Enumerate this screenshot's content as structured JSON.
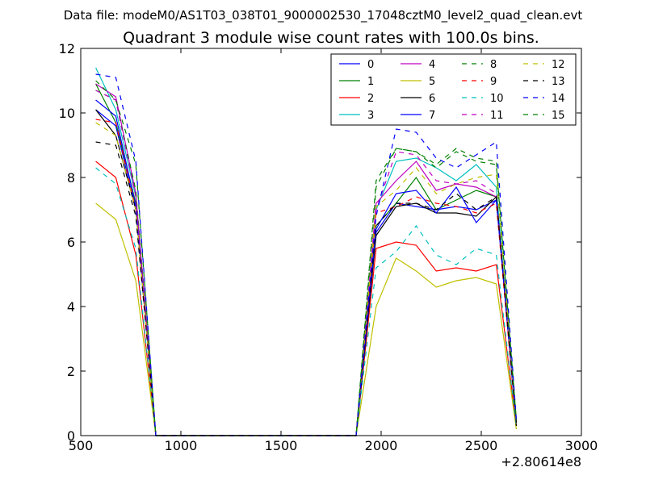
{
  "suptitle": "Data file: modeM0/AS1T03_038T01_9000002530_17048cztM0_level2_quad_clean.evt",
  "chart_data": {
    "type": "line",
    "title": "Quadrant 3 module wise count rates with 100.0s bins.",
    "xlabel": "",
    "ylabel": "",
    "xlim": [
      500,
      3000
    ],
    "ylim": [
      0,
      12
    ],
    "x_ticks": [
      "500",
      "1000",
      "1500",
      "2000",
      "2500",
      "3000"
    ],
    "y_ticks": [
      "0",
      "2",
      "4",
      "6",
      "8",
      "10",
      "12"
    ],
    "x_offset_label": "+2.80614e8",
    "grid": false,
    "legend_position": "top-right",
    "x": [
      575,
      675,
      775,
      875,
      975,
      1075,
      1175,
      1275,
      1375,
      1475,
      1575,
      1675,
      1775,
      1875,
      1975,
      2075,
      2175,
      2275,
      2375,
      2475,
      2575,
      2675
    ],
    "series": [
      {
        "name": "0",
        "color": "#0000ff",
        "dash": "solid",
        "values": [
          10.1,
          9.6,
          7.0,
          0,
          0,
          0,
          0,
          0,
          0,
          0,
          0,
          0,
          0,
          0,
          6.3,
          7.2,
          7.1,
          7.0,
          7.1,
          7.0,
          7.3,
          0.4
        ]
      },
      {
        "name": "1",
        "color": "#008000",
        "dash": "solid",
        "values": [
          10.9,
          9.7,
          7.2,
          0,
          0,
          0,
          0,
          0,
          0,
          0,
          0,
          0,
          0,
          0,
          6.5,
          7.2,
          8.0,
          7.0,
          7.3,
          7.6,
          7.4,
          0.4
        ]
      },
      {
        "name": "2",
        "color": "#ff0000",
        "dash": "solid",
        "values": [
          8.5,
          8.0,
          5.6,
          0,
          0,
          0,
          0,
          0,
          0,
          0,
          0,
          0,
          0,
          0,
          5.8,
          6.0,
          5.9,
          5.1,
          5.2,
          5.1,
          5.3,
          0.3
        ]
      },
      {
        "name": "3",
        "color": "#00bfbf",
        "dash": "solid",
        "values": [
          11.4,
          10.1,
          7.4,
          0,
          0,
          0,
          0,
          0,
          0,
          0,
          0,
          0,
          0,
          0,
          7.0,
          8.5,
          8.6,
          8.3,
          7.9,
          8.4,
          7.7,
          0.4
        ]
      },
      {
        "name": "4",
        "color": "#bf00bf",
        "dash": "solid",
        "values": [
          10.9,
          10.5,
          7.5,
          0,
          0,
          0,
          0,
          0,
          0,
          0,
          0,
          0,
          0,
          0,
          7.2,
          7.9,
          8.5,
          7.6,
          7.8,
          7.7,
          7.4,
          0.5
        ]
      },
      {
        "name": "5",
        "color": "#bfbf00",
        "dash": "solid",
        "values": [
          7.2,
          6.7,
          4.8,
          0,
          0,
          0,
          0,
          0,
          0,
          0,
          0,
          0,
          0,
          0,
          4.0,
          5.5,
          5.1,
          4.6,
          4.8,
          4.9,
          4.7,
          0.2
        ]
      },
      {
        "name": "6",
        "color": "#000000",
        "dash": "solid",
        "values": [
          10.1,
          9.3,
          7.0,
          0,
          0,
          0,
          0,
          0,
          0,
          0,
          0,
          0,
          0,
          0,
          6.2,
          7.1,
          7.2,
          6.9,
          6.9,
          6.8,
          7.4,
          0.3
        ]
      },
      {
        "name": "7",
        "color": "#0000ff",
        "dash": "solid",
        "values": [
          10.4,
          9.9,
          7.1,
          0,
          0,
          0,
          0,
          0,
          0,
          0,
          0,
          0,
          0,
          0,
          6.4,
          7.5,
          7.6,
          6.9,
          7.7,
          6.6,
          7.3,
          0.4
        ]
      },
      {
        "name": "8",
        "color": "#008000",
        "dash": "dashed",
        "values": [
          10.7,
          10.4,
          7.6,
          0,
          0,
          0,
          0,
          0,
          0,
          0,
          0,
          0,
          0,
          0,
          7.9,
          8.9,
          8.8,
          8.4,
          8.9,
          8.6,
          8.5,
          0.5
        ]
      },
      {
        "name": "9",
        "color": "#ff0000",
        "dash": "dashed",
        "values": [
          9.8,
          9.7,
          7.0,
          0,
          0,
          0,
          0,
          0,
          0,
          0,
          0,
          0,
          0,
          0,
          6.9,
          7.1,
          7.4,
          7.2,
          7.1,
          6.9,
          7.2,
          0.3
        ]
      },
      {
        "name": "10",
        "color": "#00bfbf",
        "dash": "dashed",
        "values": [
          8.3,
          7.8,
          5.8,
          0,
          0,
          0,
          0,
          0,
          0,
          0,
          0,
          0,
          0,
          0,
          5.2,
          5.7,
          6.5,
          5.6,
          5.3,
          5.8,
          5.6,
          0.3
        ]
      },
      {
        "name": "11",
        "color": "#bf00bf",
        "dash": "dashed",
        "values": [
          10.7,
          10.4,
          7.4,
          0,
          0,
          0,
          0,
          0,
          0,
          0,
          0,
          0,
          0,
          0,
          7.0,
          8.8,
          8.7,
          7.9,
          7.8,
          7.9,
          7.5,
          0.4
        ]
      },
      {
        "name": "12",
        "color": "#bfbf00",
        "dash": "dashed",
        "values": [
          9.7,
          9.3,
          7.0,
          0,
          0,
          0,
          0,
          0,
          0,
          0,
          0,
          0,
          0,
          0,
          7.1,
          7.6,
          8.3,
          7.5,
          7.8,
          8.0,
          8.1,
          0.4
        ]
      },
      {
        "name": "13",
        "color": "#000000",
        "dash": "dashed",
        "values": [
          9.1,
          9.0,
          6.8,
          0,
          0,
          0,
          0,
          0,
          0,
          0,
          0,
          0,
          0,
          0,
          6.5,
          7.2,
          7.2,
          7.0,
          7.5,
          7.0,
          7.4,
          0.4
        ]
      },
      {
        "name": "14",
        "color": "#0000ff",
        "dash": "dashed",
        "values": [
          11.2,
          11.1,
          8.5,
          0,
          0,
          0,
          0,
          0,
          0,
          0,
          0,
          0,
          0,
          0,
          6.8,
          9.5,
          9.4,
          8.6,
          8.3,
          8.7,
          9.1,
          0.5
        ]
      },
      {
        "name": "15",
        "color": "#008000",
        "dash": "dashed",
        "values": [
          11.0,
          10.4,
          8.4,
          0,
          0,
          0,
          0,
          0,
          0,
          0,
          0,
          0,
          0,
          0,
          7.7,
          8.9,
          8.8,
          8.3,
          8.8,
          8.5,
          8.4,
          0.5
        ]
      }
    ]
  }
}
